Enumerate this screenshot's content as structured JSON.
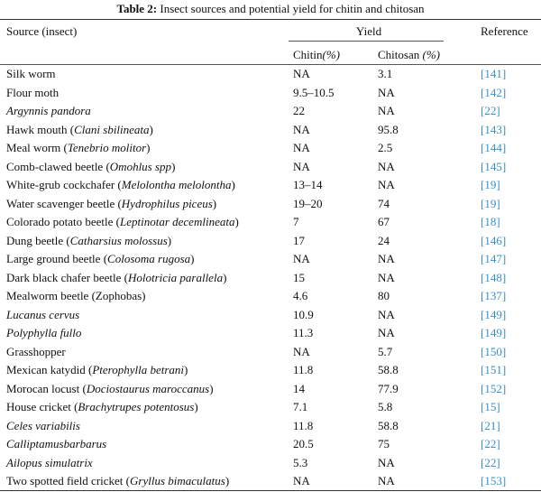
{
  "caption": {
    "label": "Table 2:",
    "text": "Insect sources and potential yield for chitin and chitosan"
  },
  "header": {
    "source": "Source (insect)",
    "yield": "Yield",
    "reference": "Reference",
    "chitin": "Chitin",
    "chitin_unit": "(%)",
    "chitosan": "Chitosan ",
    "chitosan_unit": "(%)"
  },
  "rows": [
    {
      "plain": "Silk worm",
      "sci": "",
      "whole_italic": false,
      "chitin": "NA",
      "chitosan": "3.1",
      "ref": "141"
    },
    {
      "plain": "Flour moth",
      "sci": "",
      "whole_italic": false,
      "chitin": "9.5–10.5",
      "chitosan": "NA",
      "ref": "142"
    },
    {
      "plain": "Argynnis pandora",
      "sci": "",
      "whole_italic": true,
      "chitin": "22",
      "chitosan": "NA",
      "ref": "22"
    },
    {
      "plain": "Hawk mouth (",
      "sci": "Clani sbilineata",
      "whole_italic": false,
      "chitin": "NA",
      "chitosan": "95.8",
      "ref": "143"
    },
    {
      "plain": "Meal worm (",
      "sci": "Tenebrio molitor",
      "whole_italic": false,
      "chitin": "NA",
      "chitosan": "2.5",
      "ref": "144"
    },
    {
      "plain": "Comb-clawed beetle (",
      "sci": "Omohlus spp",
      "whole_italic": false,
      "chitin": "NA",
      "chitosan": "NA",
      "ref": "145"
    },
    {
      "plain": "White-grub cockchafer (",
      "sci": "Melolontha melolontha",
      "whole_italic": false,
      "chitin": "13–14",
      "chitosan": "NA",
      "ref": "19"
    },
    {
      "plain": "Water scavenger beetle (",
      "sci": "Hydrophilus piceus",
      "whole_italic": false,
      "chitin": "19–20",
      "chitosan": "74",
      "ref": "19"
    },
    {
      "plain": "Colorado potato beetle (",
      "sci": "Leptinotar decemlineata",
      "whole_italic": false,
      "chitin": "7",
      "chitosan": "67",
      "ref": "18"
    },
    {
      "plain": "Dung beetle (",
      "sci": "Catharsius molossus",
      "whole_italic": false,
      "chitin": "17",
      "chitosan": "24",
      "ref": "146"
    },
    {
      "plain": "Large ground beetle (",
      "sci": "Colosoma rugosa",
      "whole_italic": false,
      "chitin": "NA",
      "chitosan": "NA",
      "ref": "147"
    },
    {
      "plain": "Dark black chafer beetle (",
      "sci": "Holotricia parallela",
      "whole_italic": false,
      "chitin": "15",
      "chitosan": "NA",
      "ref": "148"
    },
    {
      "plain": "Mealworm beetle (Zophobas)",
      "sci": "",
      "whole_italic": false,
      "chitin": "4.6",
      "chitosan": "80",
      "ref": "137"
    },
    {
      "plain": "Lucanus cervus",
      "sci": "",
      "whole_italic": true,
      "chitin": "10.9",
      "chitosan": "NA",
      "ref": "149"
    },
    {
      "plain": "Polyphylla fullo",
      "sci": "",
      "whole_italic": true,
      "chitin": "11.3",
      "chitosan": "NA",
      "ref": "149"
    },
    {
      "plain": "Grasshopper",
      "sci": "",
      "whole_italic": false,
      "chitin": "NA",
      "chitosan": "5.7",
      "ref": "150"
    },
    {
      "plain": "Mexican katydid (",
      "sci": "Pterophylla betrani",
      "whole_italic": false,
      "chitin": "11.8",
      "chitosan": "58.8",
      "ref": "151"
    },
    {
      "plain": "Morocan locust (",
      "sci": "Dociostaurus maroccanus",
      "whole_italic": false,
      "chitin": "14",
      "chitosan": "77.9",
      "ref": "152"
    },
    {
      "plain": "House cricket (",
      "sci": "Brachytrupes potentosus",
      "whole_italic": false,
      "chitin": "7.1",
      "chitosan": "5.8",
      "ref": "15"
    },
    {
      "plain": "Celes variabilis",
      "sci": "",
      "whole_italic": true,
      "chitin": "11.8",
      "chitosan": "58.8",
      "ref": "21"
    },
    {
      "plain": "Calliptamusbarbarus",
      "sci": "",
      "whole_italic": true,
      "chitin": "20.5",
      "chitosan": "75",
      "ref": "22"
    },
    {
      "plain": "Ailopus simulatrix",
      "sci": "",
      "whole_italic": true,
      "chitin": "5.3",
      "chitosan": "NA",
      "ref": "22"
    },
    {
      "plain": "Two spotted field cricket (",
      "sci": "Gryllus bimaculatus",
      "whole_italic": false,
      "chitin": "NA",
      "chitosan": "NA",
      "ref": "153"
    }
  ]
}
